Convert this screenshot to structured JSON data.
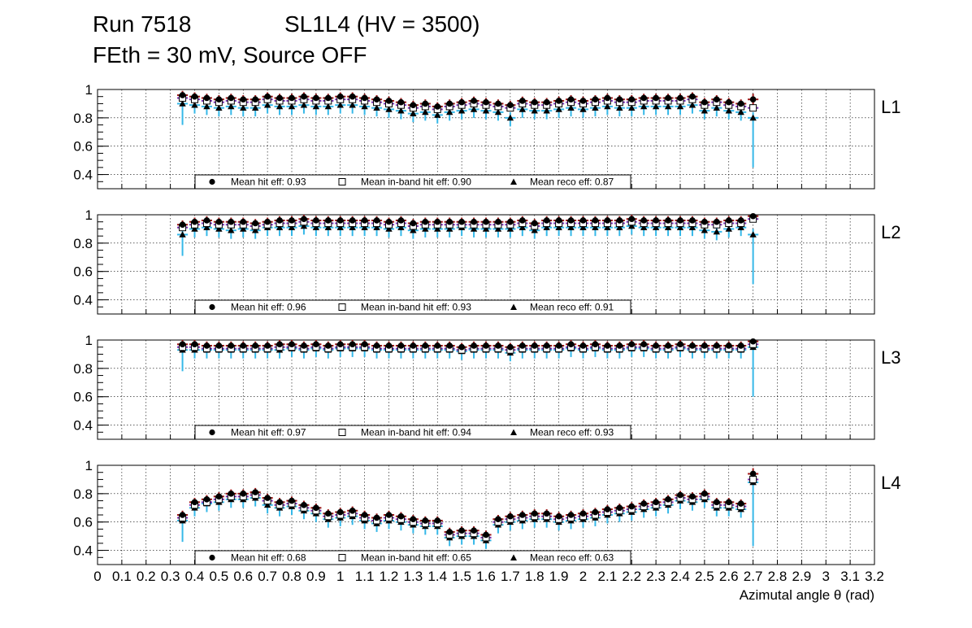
{
  "header": {
    "run": "Run 7518",
    "chamber": "SL1L4 (HV = 3500)",
    "conditions": "FEth = 30 mV, Source OFF"
  },
  "chart_data": {
    "type": "scatter",
    "title": "Run 7518  SL1L4 (HV = 3500)  FEth = 30 mV, Source OFF",
    "xlabel": "Azimutal angle θ (rad)",
    "xlim": [
      0,
      3.2
    ],
    "x_tick_labels": [
      "0",
      "0.1",
      "0.2",
      "0.3",
      "0.4",
      "0.5",
      "0.6",
      "0.7",
      "0.8",
      "0.9",
      "1",
      "1.1",
      "1.2",
      "1.3",
      "1.4",
      "1.5",
      "1.6",
      "1.7",
      "1.8",
      "1.9",
      "2",
      "2.1",
      "2.2",
      "2.3",
      "2.4",
      "2.5",
      "2.6",
      "2.7",
      "2.8",
      "2.9",
      "3",
      "3.1",
      "3.2"
    ],
    "ylim": [
      0.3,
      1.0
    ],
    "y_tick_labels": [
      "0.4",
      "0.6",
      "0.8",
      "1"
    ],
    "x": [
      0.35,
      0.4,
      0.45,
      0.5,
      0.55,
      0.6,
      0.65,
      0.7,
      0.75,
      0.8,
      0.85,
      0.9,
      0.95,
      1.0,
      1.05,
      1.1,
      1.15,
      1.2,
      1.25,
      1.3,
      1.35,
      1.4,
      1.45,
      1.5,
      1.55,
      1.6,
      1.65,
      1.7,
      1.75,
      1.8,
      1.85,
      1.9,
      1.95,
      2.0,
      2.05,
      2.1,
      2.15,
      2.2,
      2.25,
      2.3,
      2.35,
      2.4,
      2.45,
      2.5,
      2.55,
      2.6,
      2.65,
      2.7
    ],
    "legend_labels": {
      "hit": "Mean hit  eff: ",
      "inband": "Mean in-band hit eff: ",
      "reco": "Mean reco eff: "
    },
    "panels": [
      {
        "name": "L1",
        "means": {
          "hit": "0.93",
          "inband": "0.90",
          "reco": "0.87"
        },
        "hit": [
          0.96,
          0.95,
          0.94,
          0.93,
          0.94,
          0.93,
          0.93,
          0.95,
          0.94,
          0.94,
          0.95,
          0.94,
          0.94,
          0.95,
          0.95,
          0.94,
          0.93,
          0.92,
          0.91,
          0.89,
          0.9,
          0.88,
          0.9,
          0.91,
          0.92,
          0.91,
          0.9,
          0.89,
          0.92,
          0.91,
          0.91,
          0.92,
          0.93,
          0.92,
          0.93,
          0.94,
          0.93,
          0.93,
          0.94,
          0.94,
          0.94,
          0.94,
          0.95,
          0.91,
          0.93,
          0.91,
          0.9,
          0.93
        ],
        "inband": [
          0.94,
          0.93,
          0.92,
          0.91,
          0.92,
          0.91,
          0.91,
          0.93,
          0.92,
          0.92,
          0.93,
          0.92,
          0.92,
          0.93,
          0.93,
          0.92,
          0.91,
          0.9,
          0.89,
          0.87,
          0.88,
          0.86,
          0.88,
          0.89,
          0.9,
          0.89,
          0.88,
          0.87,
          0.9,
          0.89,
          0.89,
          0.9,
          0.91,
          0.9,
          0.91,
          0.92,
          0.91,
          0.91,
          0.92,
          0.92,
          0.92,
          0.92,
          0.93,
          0.89,
          0.91,
          0.89,
          0.88,
          0.87
        ],
        "reco": [
          0.9,
          0.89,
          0.88,
          0.87,
          0.88,
          0.87,
          0.87,
          0.89,
          0.88,
          0.88,
          0.89,
          0.88,
          0.88,
          0.89,
          0.89,
          0.88,
          0.87,
          0.86,
          0.85,
          0.83,
          0.84,
          0.82,
          0.84,
          0.85,
          0.86,
          0.85,
          0.84,
          0.8,
          0.86,
          0.85,
          0.85,
          0.86,
          0.87,
          0.86,
          0.87,
          0.88,
          0.87,
          0.87,
          0.88,
          0.88,
          0.88,
          0.88,
          0.89,
          0.85,
          0.87,
          0.85,
          0.84,
          0.8
        ]
      },
      {
        "name": "L2",
        "means": {
          "hit": "0.96",
          "inband": "0.93",
          "reco": "0.91"
        },
        "hit": [
          0.93,
          0.95,
          0.96,
          0.95,
          0.95,
          0.95,
          0.94,
          0.95,
          0.96,
          0.96,
          0.97,
          0.96,
          0.96,
          0.96,
          0.96,
          0.96,
          0.96,
          0.95,
          0.96,
          0.94,
          0.95,
          0.95,
          0.95,
          0.95,
          0.95,
          0.95,
          0.95,
          0.95,
          0.96,
          0.94,
          0.96,
          0.96,
          0.96,
          0.96,
          0.96,
          0.96,
          0.96,
          0.97,
          0.96,
          0.96,
          0.96,
          0.96,
          0.96,
          0.95,
          0.95,
          0.96,
          0.96,
          0.99
        ],
        "inband": [
          0.91,
          0.93,
          0.94,
          0.93,
          0.93,
          0.93,
          0.92,
          0.93,
          0.94,
          0.94,
          0.95,
          0.94,
          0.94,
          0.94,
          0.94,
          0.94,
          0.94,
          0.93,
          0.94,
          0.92,
          0.93,
          0.93,
          0.93,
          0.93,
          0.93,
          0.93,
          0.93,
          0.93,
          0.94,
          0.92,
          0.94,
          0.94,
          0.94,
          0.94,
          0.94,
          0.94,
          0.94,
          0.95,
          0.94,
          0.94,
          0.94,
          0.94,
          0.94,
          0.93,
          0.93,
          0.94,
          0.94,
          0.97
        ],
        "reco": [
          0.86,
          0.9,
          0.91,
          0.9,
          0.89,
          0.9,
          0.89,
          0.91,
          0.91,
          0.91,
          0.92,
          0.91,
          0.91,
          0.91,
          0.91,
          0.91,
          0.91,
          0.9,
          0.91,
          0.89,
          0.9,
          0.9,
          0.9,
          0.91,
          0.9,
          0.9,
          0.9,
          0.9,
          0.91,
          0.89,
          0.91,
          0.91,
          0.91,
          0.91,
          0.91,
          0.91,
          0.91,
          0.92,
          0.91,
          0.91,
          0.91,
          0.91,
          0.91,
          0.89,
          0.88,
          0.9,
          0.91,
          0.86
        ]
      },
      {
        "name": "L3",
        "means": {
          "hit": "0.97",
          "inband": "0.94",
          "reco": "0.93"
        },
        "hit": [
          0.97,
          0.97,
          0.96,
          0.96,
          0.96,
          0.96,
          0.96,
          0.96,
          0.97,
          0.97,
          0.96,
          0.97,
          0.96,
          0.97,
          0.97,
          0.97,
          0.96,
          0.96,
          0.96,
          0.96,
          0.96,
          0.96,
          0.96,
          0.95,
          0.96,
          0.96,
          0.96,
          0.95,
          0.96,
          0.96,
          0.96,
          0.96,
          0.97,
          0.96,
          0.97,
          0.96,
          0.96,
          0.97,
          0.97,
          0.96,
          0.96,
          0.97,
          0.96,
          0.96,
          0.96,
          0.96,
          0.96,
          0.99
        ],
        "inband": [
          0.95,
          0.95,
          0.94,
          0.94,
          0.94,
          0.94,
          0.94,
          0.94,
          0.95,
          0.95,
          0.94,
          0.95,
          0.94,
          0.95,
          0.95,
          0.95,
          0.94,
          0.94,
          0.94,
          0.94,
          0.94,
          0.94,
          0.94,
          0.93,
          0.94,
          0.94,
          0.94,
          0.93,
          0.94,
          0.94,
          0.94,
          0.94,
          0.95,
          0.94,
          0.95,
          0.94,
          0.94,
          0.95,
          0.95,
          0.94,
          0.94,
          0.95,
          0.94,
          0.94,
          0.94,
          0.94,
          0.94,
          0.97
        ],
        "reco": [
          0.93,
          0.93,
          0.93,
          0.93,
          0.93,
          0.93,
          0.93,
          0.93,
          0.93,
          0.94,
          0.93,
          0.94,
          0.93,
          0.94,
          0.94,
          0.94,
          0.93,
          0.93,
          0.93,
          0.93,
          0.93,
          0.93,
          0.93,
          0.92,
          0.93,
          0.93,
          0.93,
          0.91,
          0.93,
          0.93,
          0.93,
          0.93,
          0.94,
          0.93,
          0.94,
          0.93,
          0.93,
          0.94,
          0.94,
          0.93,
          0.93,
          0.94,
          0.93,
          0.93,
          0.93,
          0.93,
          0.93,
          0.95
        ]
      },
      {
        "name": "L4",
        "means": {
          "hit": "0.68",
          "inband": "0.65",
          "reco": "0.63"
        },
        "hit": [
          0.65,
          0.74,
          0.76,
          0.78,
          0.8,
          0.8,
          0.81,
          0.77,
          0.74,
          0.75,
          0.72,
          0.7,
          0.66,
          0.67,
          0.68,
          0.65,
          0.63,
          0.65,
          0.64,
          0.62,
          0.61,
          0.61,
          0.53,
          0.54,
          0.54,
          0.51,
          0.62,
          0.64,
          0.65,
          0.66,
          0.66,
          0.64,
          0.65,
          0.66,
          0.67,
          0.69,
          0.7,
          0.71,
          0.73,
          0.74,
          0.76,
          0.79,
          0.78,
          0.8,
          0.74,
          0.74,
          0.73,
          0.94
        ],
        "inband": [
          0.63,
          0.72,
          0.74,
          0.76,
          0.78,
          0.78,
          0.79,
          0.75,
          0.72,
          0.73,
          0.7,
          0.68,
          0.64,
          0.65,
          0.66,
          0.63,
          0.61,
          0.63,
          0.62,
          0.6,
          0.59,
          0.59,
          0.51,
          0.52,
          0.52,
          0.49,
          0.6,
          0.62,
          0.63,
          0.64,
          0.64,
          0.62,
          0.63,
          0.64,
          0.65,
          0.67,
          0.68,
          0.69,
          0.71,
          0.72,
          0.74,
          0.77,
          0.76,
          0.78,
          0.72,
          0.72,
          0.71,
          0.9
        ],
        "reco": [
          0.61,
          0.7,
          0.73,
          0.74,
          0.76,
          0.76,
          0.77,
          0.72,
          0.7,
          0.71,
          0.68,
          0.66,
          0.62,
          0.63,
          0.64,
          0.61,
          0.59,
          0.61,
          0.6,
          0.58,
          0.57,
          0.57,
          0.49,
          0.5,
          0.5,
          0.47,
          0.58,
          0.6,
          0.61,
          0.62,
          0.62,
          0.6,
          0.61,
          0.62,
          0.63,
          0.65,
          0.66,
          0.67,
          0.69,
          0.7,
          0.72,
          0.75,
          0.74,
          0.76,
          0.7,
          0.7,
          0.69,
          0.88
        ]
      }
    ]
  }
}
